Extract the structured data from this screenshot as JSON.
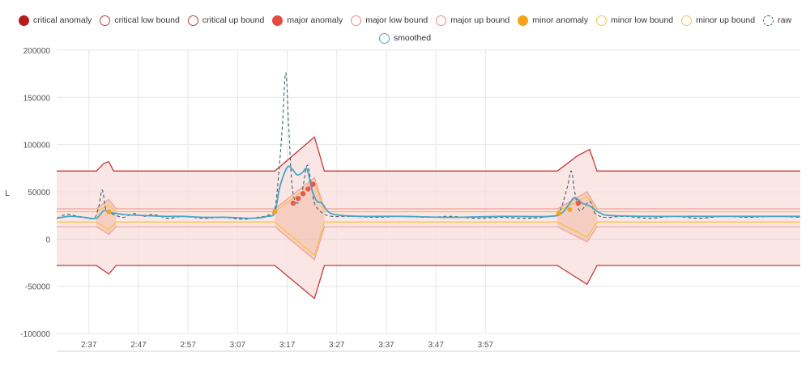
{
  "colors": {
    "critical": "#c43a3a",
    "critical_fill": "#f9dede",
    "major": "#e85a4f",
    "major_line": "#f0a09a",
    "minor": "#f4a21b",
    "minor_line": "#f6c34a",
    "raw": "#3d6269",
    "smoothed": "#4aa5c5",
    "band_fill": "#f3b9a3",
    "zero": "#b0b0b0",
    "grid": "#e7e7e7"
  },
  "legend": [
    {
      "label": "critical anomaly",
      "style": "filled",
      "color": "#b71c1c"
    },
    {
      "label": "critical low bound",
      "style": "ring",
      "color": "#c43a3a"
    },
    {
      "label": "critical up bound",
      "style": "ring",
      "color": "#c43a3a"
    },
    {
      "label": "major anomaly",
      "style": "filled",
      "color": "#e5493f"
    },
    {
      "label": "major low bound",
      "style": "ring",
      "color": "#ef8a84"
    },
    {
      "label": "major up bound",
      "style": "ring",
      "color": "#ef8a84"
    },
    {
      "label": "minor anomaly",
      "style": "filled",
      "color": "#f4a21b"
    },
    {
      "label": "minor low bound",
      "style": "ring",
      "color": "#f6c34a"
    },
    {
      "label": "minor up bound",
      "style": "ring",
      "color": "#f6c34a"
    },
    {
      "label": "raw",
      "style": "dashed",
      "color": "#3d6269"
    },
    {
      "label": "smoothed",
      "style": "ring",
      "color": "#4aa5c5"
    }
  ],
  "chart_data": {
    "type": "line",
    "ylabel": "L",
    "ylim": [
      -100000,
      200000
    ],
    "yticks": [
      "200000",
      "150000",
      "100000",
      "50000",
      "0",
      "-50000",
      "-100000"
    ],
    "xticks": [
      "2:37",
      "2:47",
      "2:57",
      "3:07",
      "3:17",
      "3:27",
      "3:37",
      "3:47",
      "3:57"
    ],
    "xrange_minutes": [
      30.5,
      0.5
    ],
    "grid": true,
    "legend_position": "top",
    "series": [
      {
        "name": "critical up bound",
        "points": [
          [
            30.5,
            72000
          ],
          [
            38.5,
            72000
          ],
          [
            40.0,
            80000
          ],
          [
            41.0,
            82000
          ],
          [
            42.0,
            72000
          ],
          [
            74.5,
            72000
          ],
          [
            82.5,
            108000
          ],
          [
            84.5,
            72000
          ],
          [
            131.5,
            72000
          ],
          [
            135.5,
            88000
          ],
          [
            138.0,
            95000
          ],
          [
            139.5,
            72000
          ],
          [
            180.5,
            72000
          ]
        ]
      },
      {
        "name": "critical low bound",
        "points": [
          [
            30.5,
            -28000
          ],
          [
            38.5,
            -28000
          ],
          [
            41.0,
            -37000
          ],
          [
            42.5,
            -28000
          ],
          [
            74.5,
            -28000
          ],
          [
            82.5,
            -63000
          ],
          [
            84.5,
            -28000
          ],
          [
            131.5,
            -28000
          ],
          [
            137.5,
            -48000
          ],
          [
            139.5,
            -28000
          ],
          [
            180.5,
            -28000
          ]
        ]
      },
      {
        "name": "major up bound",
        "points": [
          [
            30.5,
            32000
          ],
          [
            38.5,
            32000
          ],
          [
            41.0,
            42000
          ],
          [
            42.5,
            32000
          ],
          [
            74.5,
            32000
          ],
          [
            82.5,
            65000
          ],
          [
            84.5,
            32000
          ],
          [
            131.5,
            32000
          ],
          [
            137.5,
            50000
          ],
          [
            139.5,
            32000
          ],
          [
            180.5,
            32000
          ]
        ]
      },
      {
        "name": "major low bound",
        "points": [
          [
            30.5,
            13000
          ],
          [
            38.5,
            13000
          ],
          [
            41.0,
            5000
          ],
          [
            42.5,
            13000
          ],
          [
            74.5,
            13000
          ],
          [
            82.5,
            -22000
          ],
          [
            84.5,
            13000
          ],
          [
            131.5,
            13000
          ],
          [
            137.5,
            -3000
          ],
          [
            139.5,
            13000
          ],
          [
            180.5,
            13000
          ]
        ]
      },
      {
        "name": "minor up bound",
        "points": [
          [
            30.5,
            29000
          ],
          [
            38.5,
            29000
          ],
          [
            41.0,
            36000
          ],
          [
            42.5,
            29000
          ],
          [
            74.5,
            29000
          ],
          [
            82.5,
            60000
          ],
          [
            84.5,
            29000
          ],
          [
            131.5,
            29000
          ],
          [
            137.5,
            45000
          ],
          [
            139.5,
            29000
          ],
          [
            180.5,
            29000
          ]
        ]
      },
      {
        "name": "minor low bound",
        "points": [
          [
            30.5,
            18000
          ],
          [
            38.5,
            18000
          ],
          [
            41.0,
            10000
          ],
          [
            42.5,
            18000
          ],
          [
            74.5,
            18000
          ],
          [
            82.5,
            -17000
          ],
          [
            84.5,
            18000
          ],
          [
            131.5,
            18000
          ],
          [
            137.5,
            2000
          ],
          [
            139.5,
            18000
          ],
          [
            180.5,
            18000
          ]
        ]
      },
      {
        "name": "raw",
        "points": [
          [
            30.5,
            22000
          ],
          [
            32.5,
            26000
          ],
          [
            35.0,
            24000
          ],
          [
            38.0,
            22000
          ],
          [
            39.0,
            35000
          ],
          [
            39.7,
            52000
          ],
          [
            40.5,
            30000
          ],
          [
            42.0,
            26000
          ],
          [
            44.0,
            23000
          ],
          [
            46.0,
            27000
          ],
          [
            48.0,
            24000
          ],
          [
            50.0,
            26000
          ],
          [
            53.0,
            22000
          ],
          [
            56.0,
            24000
          ],
          [
            60.0,
            22000
          ],
          [
            64.0,
            23000
          ],
          [
            68.0,
            21000
          ],
          [
            71.0,
            23000
          ],
          [
            73.0,
            25000
          ],
          [
            74.5,
            32000
          ],
          [
            75.3,
            70000
          ],
          [
            76.0,
            118000
          ],
          [
            76.7,
            176000
          ],
          [
            77.3,
            120000
          ],
          [
            78.0,
            55000
          ],
          [
            79.0,
            38000
          ],
          [
            80.0,
            50000
          ],
          [
            81.0,
            78000
          ],
          [
            81.8,
            60000
          ],
          [
            82.5,
            38000
          ],
          [
            84.0,
            28000
          ],
          [
            86.0,
            24000
          ],
          [
            90.0,
            24000
          ],
          [
            95.0,
            23000
          ],
          [
            100.0,
            24000
          ],
          [
            105.0,
            23000
          ],
          [
            110.0,
            24000
          ],
          [
            115.0,
            22000
          ],
          [
            120.0,
            23000
          ],
          [
            125.0,
            22000
          ],
          [
            130.0,
            24000
          ],
          [
            132.0,
            30000
          ],
          [
            133.5,
            55000
          ],
          [
            134.3,
            72000
          ],
          [
            135.0,
            50000
          ],
          [
            136.0,
            30000
          ],
          [
            138.0,
            40000
          ],
          [
            139.0,
            28000
          ],
          [
            141.0,
            23000
          ],
          [
            145.0,
            24000
          ],
          [
            150.0,
            22000
          ],
          [
            155.0,
            24000
          ],
          [
            160.0,
            22000
          ],
          [
            165.0,
            24000
          ],
          [
            170.0,
            23000
          ],
          [
            175.0,
            24000
          ],
          [
            180.5,
            23000
          ]
        ]
      },
      {
        "name": "smoothed",
        "points": [
          [
            30.5,
            22000
          ],
          [
            33.0,
            24000
          ],
          [
            36.0,
            23000
          ],
          [
            38.5,
            22000
          ],
          [
            40.0,
            30000
          ],
          [
            41.5,
            28000
          ],
          [
            44.0,
            26000
          ],
          [
            48.0,
            25000
          ],
          [
            52.0,
            24000
          ],
          [
            56.0,
            24000
          ],
          [
            60.0,
            23000
          ],
          [
            65.0,
            23000
          ],
          [
            70.0,
            22000
          ],
          [
            73.0,
            24000
          ],
          [
            74.5,
            28000
          ],
          [
            75.5,
            55000
          ],
          [
            77.0,
            76000
          ],
          [
            78.0,
            74000
          ],
          [
            79.0,
            68000
          ],
          [
            80.0,
            70000
          ],
          [
            81.0,
            74000
          ],
          [
            82.0,
            52000
          ],
          [
            83.0,
            40000
          ],
          [
            84.0,
            38000
          ],
          [
            85.5,
            28000
          ],
          [
            88.0,
            25000
          ],
          [
            92.0,
            24000
          ],
          [
            100.0,
            24000
          ],
          [
            110.0,
            23000
          ],
          [
            120.0,
            24000
          ],
          [
            130.0,
            24000
          ],
          [
            132.5,
            28000
          ],
          [
            134.0,
            38000
          ],
          [
            135.0,
            44000
          ],
          [
            136.5,
            38000
          ],
          [
            138.0,
            35000
          ],
          [
            140.0,
            28000
          ],
          [
            142.0,
            25000
          ],
          [
            150.0,
            24000
          ],
          [
            160.0,
            24000
          ],
          [
            170.0,
            24000
          ],
          [
            180.5,
            24000
          ]
        ]
      }
    ],
    "anomalies": {
      "critical": [],
      "major": [
        [
          78.2,
          38000
        ],
        [
          79.2,
          43000
        ],
        [
          80.2,
          48000
        ],
        [
          81.2,
          53000
        ],
        [
          82.2,
          58000
        ],
        [
          135.7,
          38000
        ]
      ],
      "minor": [
        [
          41.0,
          29000
        ],
        [
          74.5,
          29000
        ],
        [
          131.8,
          27000
        ],
        [
          134.0,
          31000
        ]
      ]
    }
  }
}
